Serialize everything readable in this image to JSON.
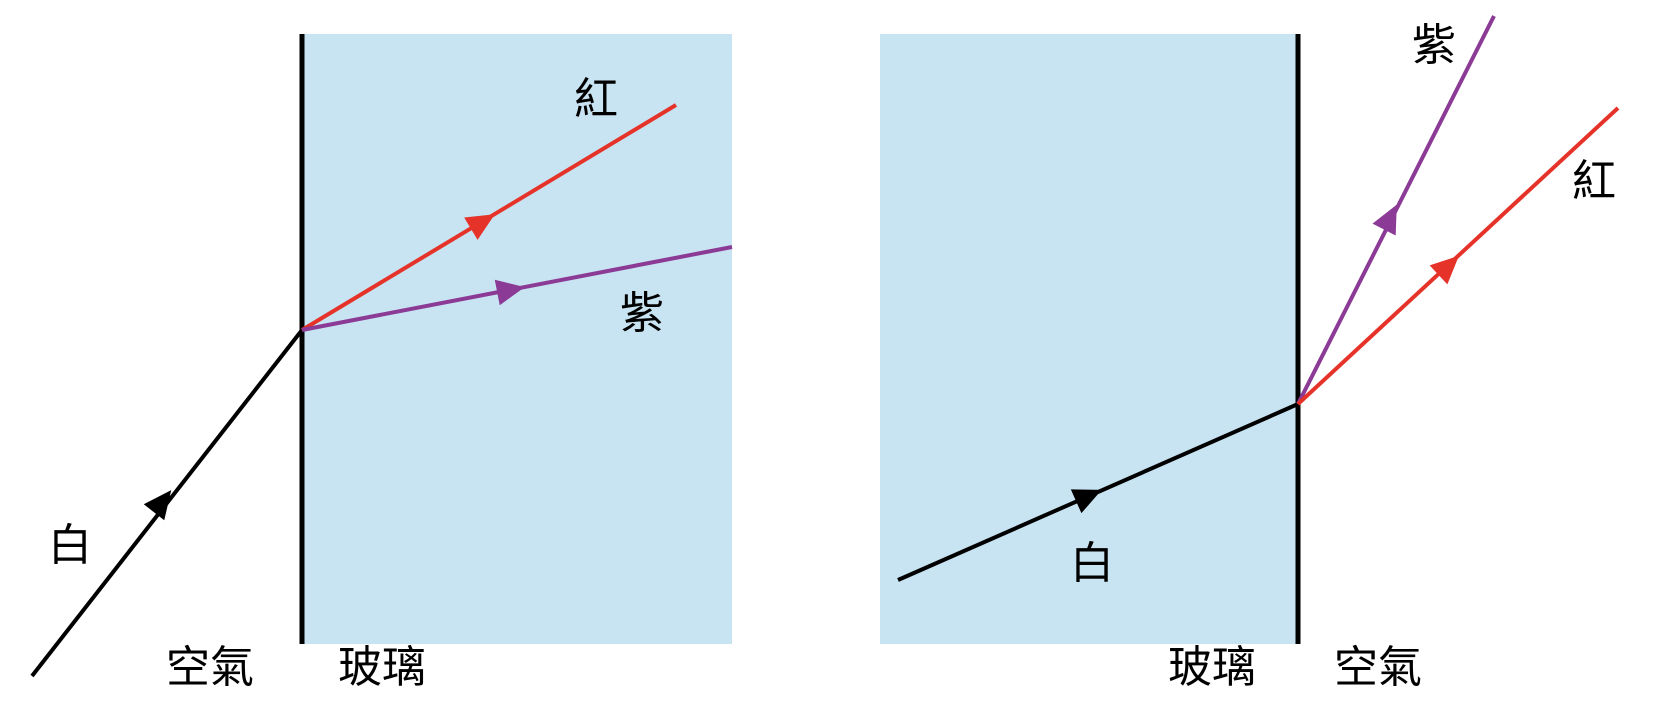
{
  "colors": {
    "glass": "#c8e4f2",
    "boundary": "#000000",
    "white_ray": "#000000",
    "red_ray": "#e6332a",
    "violet_ray": "#8b3a96"
  },
  "left_panel": {
    "medium_air": "空氣",
    "medium_glass": "玻璃",
    "ray_white": "白",
    "ray_red": "紅",
    "ray_violet": "紫"
  },
  "right_panel": {
    "medium_glass": "玻璃",
    "medium_air": "空氣",
    "ray_white": "白",
    "ray_red": "紅",
    "ray_violet": "紫"
  }
}
